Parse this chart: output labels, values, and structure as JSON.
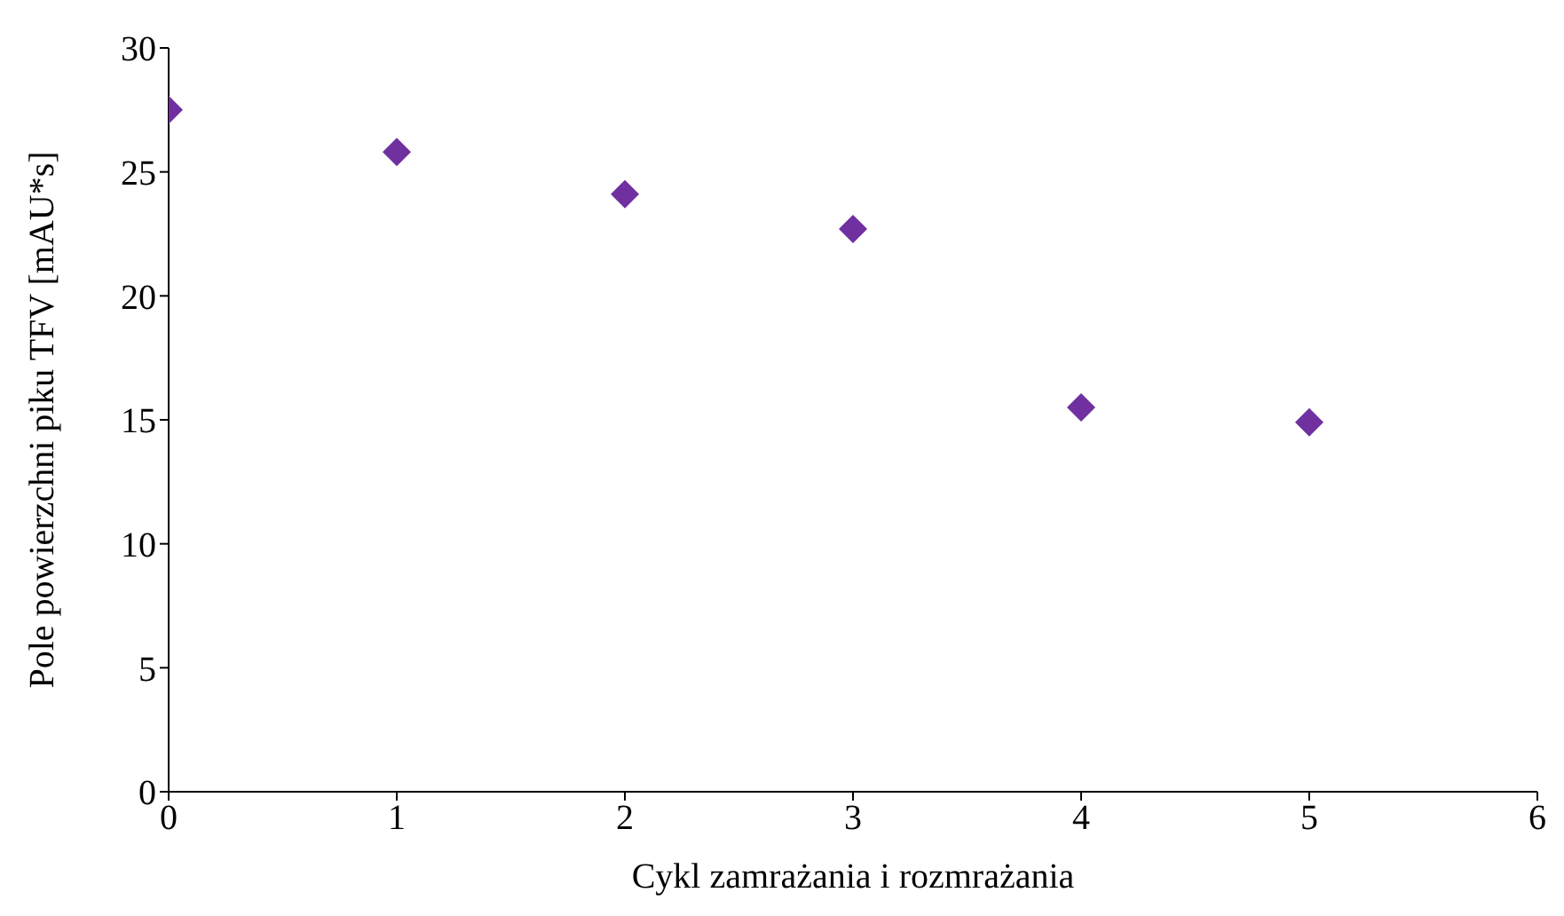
{
  "chart_data": {
    "type": "scatter",
    "xlabel": "Cykl zamrażania i rozmrażania",
    "ylabel": "Pole powierzchni piku TFV [mAU*s]",
    "x": [
      0,
      1,
      2,
      3,
      4,
      5
    ],
    "series": [
      {
        "color": "#7030a0",
        "values": [
          27.5,
          25.8,
          24.1,
          22.7,
          15.5,
          14.9
        ]
      }
    ],
    "xlim": [
      0,
      6
    ],
    "xticks": [
      0,
      1,
      2,
      3,
      4,
      5,
      6
    ],
    "ylim": [
      0,
      30
    ],
    "yticks": [
      0,
      5,
      10,
      15,
      20,
      25,
      30
    ],
    "grid": false,
    "legend": false,
    "marker": "diamond"
  }
}
